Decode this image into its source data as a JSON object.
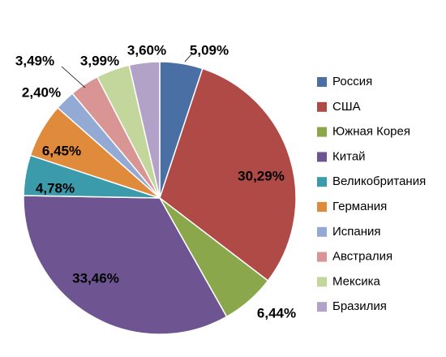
{
  "chart_data": {
    "type": "pie",
    "title": "",
    "legend_position": "right",
    "series": [
      {
        "name": "Россия",
        "value": 5.09,
        "label": "5,09%",
        "color": "#4a6fa5"
      },
      {
        "name": "США",
        "value": 30.29,
        "label": "30,29%",
        "color": "#b04a47"
      },
      {
        "name": "Южная Корея",
        "value": 6.44,
        "label": "6,44%",
        "color": "#8aa84b"
      },
      {
        "name": "Китай",
        "value": 33.46,
        "label": "33,46%",
        "color": "#6e5591"
      },
      {
        "name": "Великобритания",
        "value": 4.78,
        "label": "4,78%",
        "color": "#3c9bab"
      },
      {
        "name": "Германия",
        "value": 6.45,
        "label": "6,45%",
        "color": "#e08a3c"
      },
      {
        "name": "Испания",
        "value": 2.4,
        "label": "2,40%",
        "color": "#93abd4"
      },
      {
        "name": "Австралия",
        "value": 3.49,
        "label": "3,49%",
        "color": "#d99594"
      },
      {
        "name": "Мексика",
        "value": 3.99,
        "label": "3,99%",
        "color": "#c3d69b"
      },
      {
        "name": "Бразилия",
        "value": 3.6,
        "label": "3,60%",
        "color": "#b2a2c7"
      }
    ]
  }
}
